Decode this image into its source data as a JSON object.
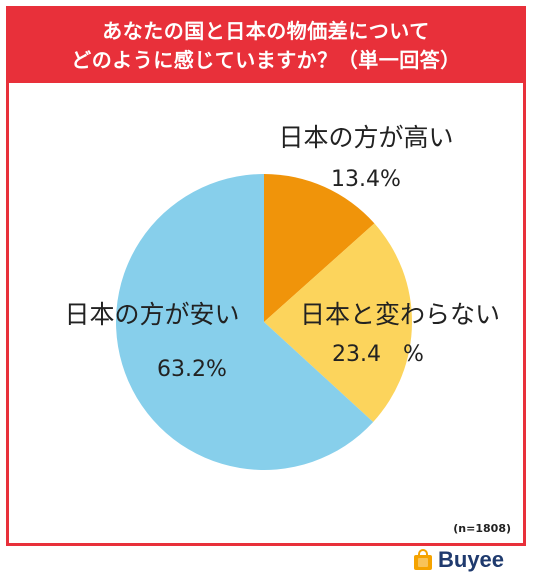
{
  "title": {
    "line1": "あなたの国と日本の物価差について",
    "line2": "どのように感じていますか？（単一回答）"
  },
  "sample_note": "(n=1808)",
  "brand": {
    "name": "Buyee",
    "logo_icon": "shopping-bag-icon",
    "color": "#1f3a6e",
    "icon_color": "#f5a300"
  },
  "colors": {
    "frame": "#e8303a"
  },
  "chart_data": {
    "type": "pie",
    "title": "あなたの国と日本の物価差について どのように感じていますか？（単一回答）",
    "slices": [
      {
        "label": "日本の方が高い",
        "value": 13.4,
        "value_label": "13.4%",
        "color": "#f0940a"
      },
      {
        "label": "日本と変わらない",
        "value": 23.4,
        "value_label": "23.4　%",
        "color": "#fcd45c"
      },
      {
        "label": "日本の方が安い",
        "value": 63.2,
        "value_label": "63.2%",
        "color": "#87cfeb"
      }
    ],
    "start_angle_deg": 0,
    "direction": "clockwise"
  }
}
